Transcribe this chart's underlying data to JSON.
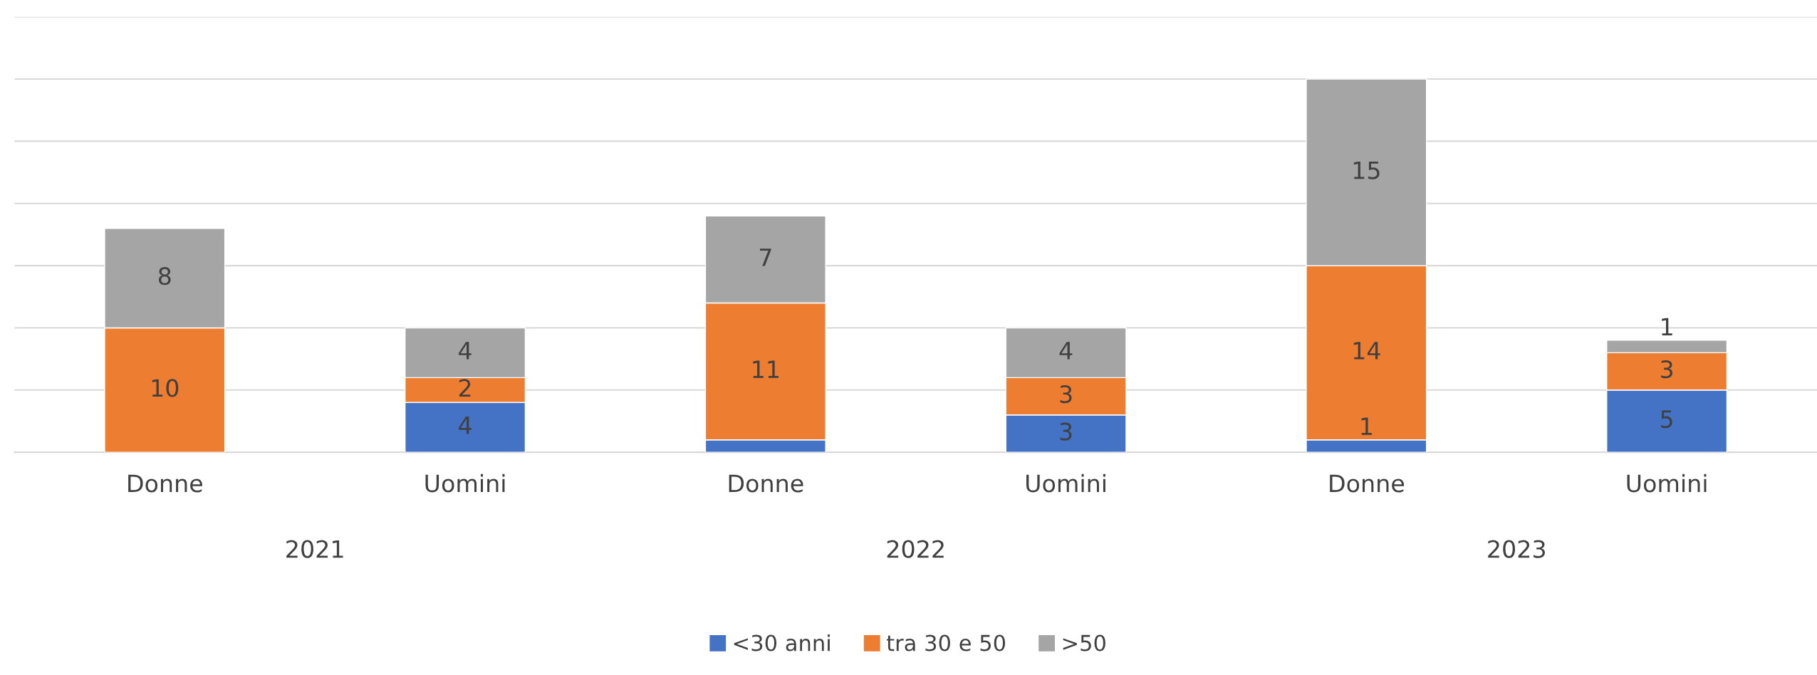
{
  "chart_data": {
    "type": "bar",
    "stacked": true,
    "categories": [
      "Donne",
      "Uomini",
      "Donne",
      "Uomini",
      "Donne",
      "Uomini"
    ],
    "series": [
      {
        "name": "<30 anni",
        "color": "#4472c4",
        "values": [
          0,
          4,
          1,
          3,
          1,
          5
        ],
        "value_labels": [
          null,
          "4",
          null,
          "3",
          "1",
          "5"
        ]
      },
      {
        "name": "tra 30 e 50",
        "color": "#ed7d31",
        "values": [
          10,
          2,
          11,
          3,
          14,
          3
        ],
        "value_labels": [
          "10",
          "2",
          "11",
          "3",
          "14",
          "3"
        ]
      },
      {
        "name": ">50",
        "color": "#a5a5a5",
        "values": [
          8,
          4,
          7,
          4,
          15,
          1
        ],
        "value_labels": [
          "8",
          "4",
          "7",
          "4",
          "15",
          "1"
        ]
      }
    ],
    "annotations": [
      "2021",
      "2022",
      "2023"
    ],
    "ylim": [
      0,
      35
    ],
    "yticks": [
      {
        "value": 0,
        "label": null
      },
      {
        "value": 5,
        "label": null
      },
      {
        "value": 10,
        "label": null
      },
      {
        "value": 15,
        "label": null
      },
      {
        "value": 20,
        "label": null
      },
      {
        "value": 25,
        "label": null
      },
      {
        "value": 30,
        "label": null
      },
      {
        "value": 35,
        "label": null
      }
    ],
    "tick_labels": "x",
    "grid": "y",
    "legend": "bottom"
  }
}
